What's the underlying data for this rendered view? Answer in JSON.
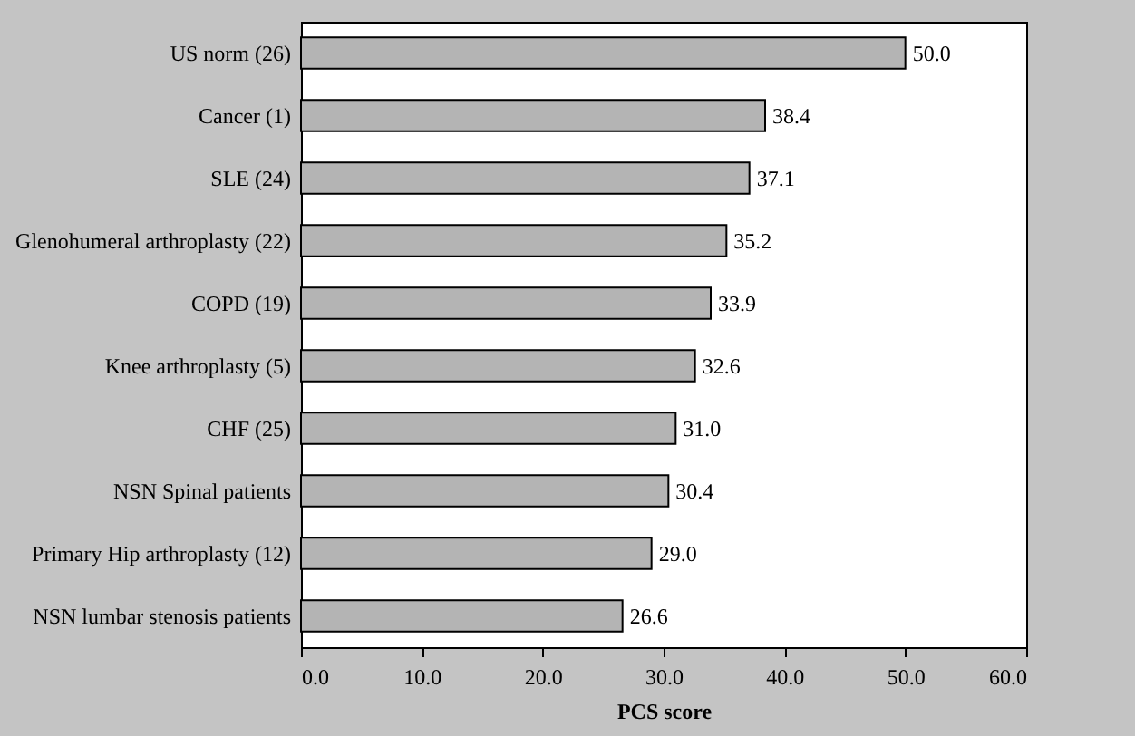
{
  "chart_data": {
    "type": "bar",
    "orientation": "horizontal",
    "xlabel": "PCS score",
    "categories": [
      "US norm (26)",
      "Cancer (1)",
      "SLE (24)",
      "Glenohumeral arthroplasty (22)",
      "COPD (19)",
      "Knee arthroplasty (5)",
      "CHF (25)",
      "NSN Spinal patients",
      "Primary Hip arthroplasty (12)",
      "NSN lumbar stenosis patients"
    ],
    "values": [
      50.0,
      38.4,
      37.1,
      35.2,
      33.9,
      32.6,
      31.0,
      30.4,
      29.0,
      26.6
    ],
    "value_labels": [
      "50.0",
      "38.4",
      "37.1",
      "35.2",
      "33.9",
      "32.6",
      "31.0",
      "30.4",
      "29.0",
      "26.6"
    ],
    "color": "#b4b4b4",
    "xlim": [
      0,
      60
    ],
    "xticks": [
      {
        "value": 0,
        "label": "0.0"
      },
      {
        "value": 10,
        "label": "10.0"
      },
      {
        "value": 20,
        "label": "20.0"
      },
      {
        "value": 30,
        "label": "30.0"
      },
      {
        "value": 40,
        "label": "40.0"
      },
      {
        "value": 50,
        "label": "50.0"
      },
      {
        "value": 60,
        "label": "60.0"
      }
    ],
    "grid": false
  }
}
